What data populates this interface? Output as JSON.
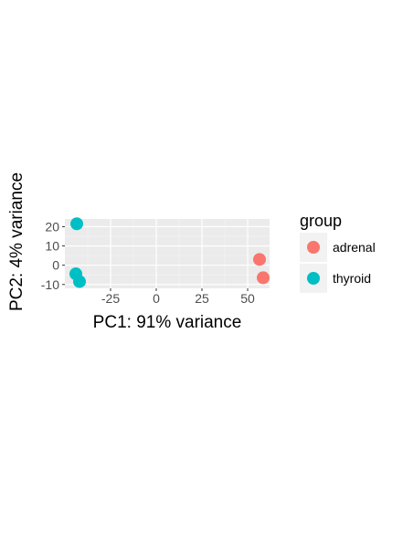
{
  "chart_data": {
    "type": "scatter",
    "title": "",
    "xlabel": "PC1: 91% variance",
    "ylabel": "PC2: 4% variance",
    "xlim": [
      -50,
      62
    ],
    "ylim": [
      -12,
      24
    ],
    "x_ticks": [
      -25,
      0,
      25,
      50
    ],
    "y_ticks": [
      20,
      10,
      0,
      -10
    ],
    "grid": true,
    "legend_position": "right",
    "legend_title": "group",
    "series": [
      {
        "name": "adrenal",
        "color": "#F8766D",
        "points": [
          {
            "x": 56.5,
            "y": 3.0
          },
          {
            "x": 58.5,
            "y": -6.5
          }
        ]
      },
      {
        "name": "thyroid",
        "color": "#00BFC4",
        "points": [
          {
            "x": -43.5,
            "y": 21.5
          },
          {
            "x": -44.0,
            "y": -4.5
          },
          {
            "x": -42.0,
            "y": -8.5
          }
        ]
      }
    ]
  }
}
